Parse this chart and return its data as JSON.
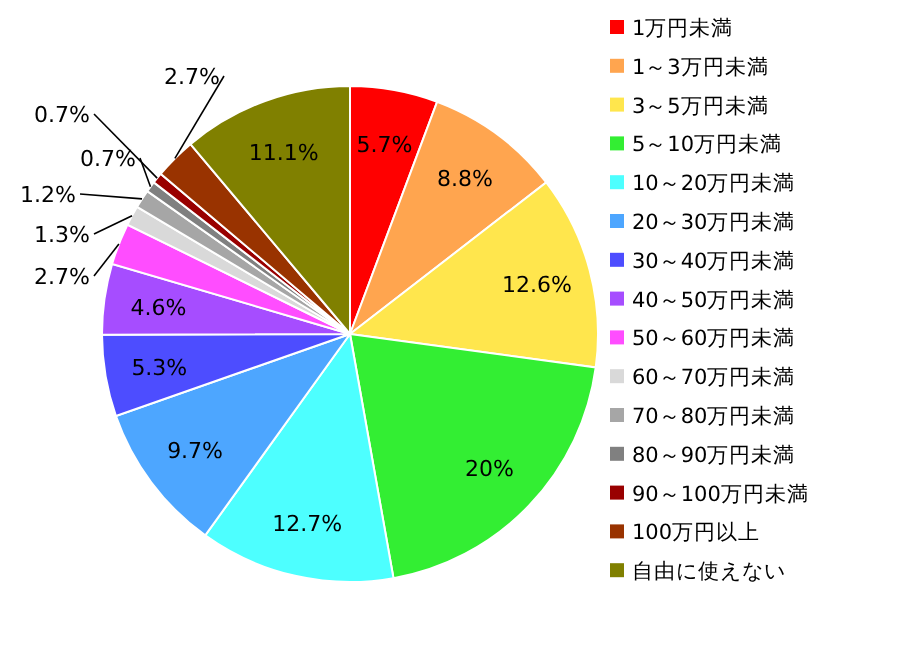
{
  "chart_data": {
    "type": "pie",
    "categories": [
      "1万円未満",
      "1～3万円未満",
      "3～5万円未満",
      "5～10万円未満",
      "10～20万円未満",
      "20～30万円未満",
      "30～40万円未満",
      "40～50万円未満",
      "50～60万円未満",
      "60～70万円未満",
      "70～80万円未満",
      "80～90万円未満",
      "90～100万円未満",
      "100万円以上",
      "自由に使えない"
    ],
    "values": [
      5.7,
      8.8,
      12.6,
      20,
      12.7,
      9.7,
      5.3,
      4.6,
      2.7,
      1.3,
      1.2,
      0.7,
      0.7,
      2.7,
      11.1
    ],
    "value_labels": [
      "5.7%",
      "8.8%",
      "12.6%",
      "20%",
      "12.7%",
      "9.7%",
      "5.3%",
      "4.6%",
      "2.7%",
      "1.3%",
      "1.2%",
      "0.7%",
      "0.7%",
      "2.7%",
      "11.1%"
    ],
    "colors": [
      "#ff0000",
      "#ffa54f",
      "#ffe64d",
      "#33ee33",
      "#4dffff",
      "#4da6ff",
      "#4d4dff",
      "#a64dff",
      "#ff4dff",
      "#d9d9d9",
      "#a6a6a6",
      "#808080",
      "#990000",
      "#993300",
      "#808000"
    ],
    "legend": "right"
  }
}
